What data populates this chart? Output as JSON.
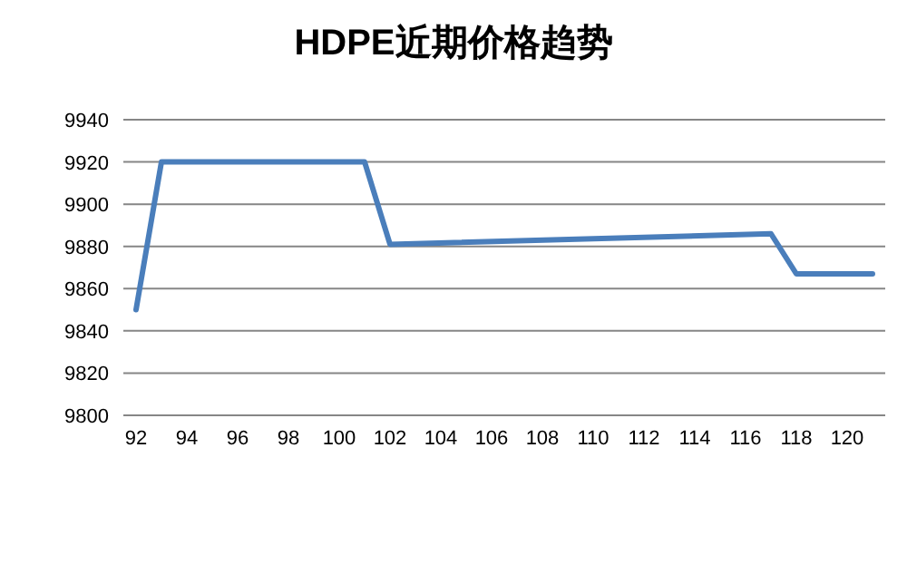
{
  "chart_data": {
    "type": "line",
    "title": "HDPE近期价格趋势",
    "x": [
      92,
      93,
      101,
      102,
      117,
      118,
      121
    ],
    "series": [
      {
        "color": "#4a7ebb",
        "values": [
          9850,
          9920,
          9920,
          9881,
          9886,
          9867,
          9867
        ]
      }
    ],
    "xlim": [
      91.5,
      121.5
    ],
    "xticks": [
      92,
      94,
      96,
      98,
      100,
      102,
      104,
      106,
      108,
      110,
      112,
      114,
      116,
      118,
      120
    ],
    "ylim": [
      9800,
      9940
    ],
    "yticks": [
      9800,
      9820,
      9840,
      9860,
      9880,
      9900,
      9920,
      9940
    ],
    "grid": "y",
    "marker": "none",
    "line_style": "solid"
  }
}
